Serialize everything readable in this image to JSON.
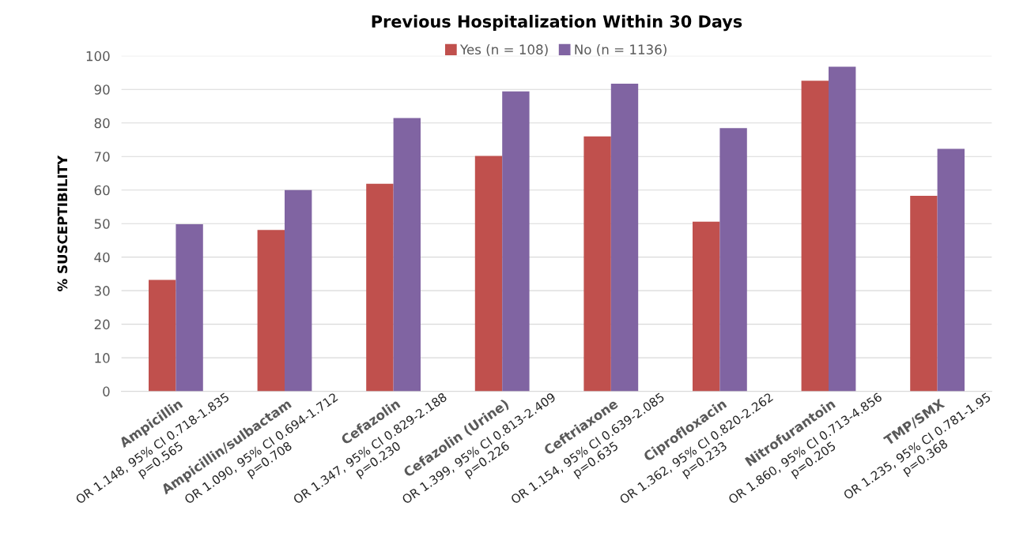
{
  "chart_data": {
    "type": "bar",
    "title": "Previous Hospitalization Within 30 Days",
    "ylabel": "% SUSCEPTIBILITY",
    "categories": [
      "Ampicillin",
      "Ampicillin/sulbactam",
      "Cefazolin",
      "Cefazolin (Urine)",
      "Ceftriaxone",
      "Ciprofloxacin",
      "Nitrofurantoin",
      "TMP/SMX"
    ],
    "series": [
      {
        "name": "Yes (n = 108)",
        "color": "#c0504d",
        "values": [
          33.2,
          48.1,
          61.9,
          70.2,
          76.0,
          50.6,
          92.6,
          58.3
        ]
      },
      {
        "name": "No (n = 1136)",
        "color": "#8064a2",
        "values": [
          49.8,
          60.0,
          81.5,
          89.4,
          91.7,
          78.5,
          96.8,
          72.3
        ]
      }
    ],
    "annotations": [
      "OR 1.148, 95% CI 0.718-1.835\np=0.565",
      "OR 1.090, 95% CI 0.694-1.712\np=0.708",
      "OR 1.347, 95% CI 0.829-2.188\np=0.230",
      "OR 1.399, 95% CI 0.813-2.409\np=0.226",
      "OR 1.154, 95% CI 0.639-2.085\np=0.635",
      "OR 1.362, 95% CI 0.820-2.262\np=0.233",
      "OR 1.860, 95% CI 0.713-4.856\np=0.205",
      "OR 1.235, 95% CI 0.781-1.95\np=0.368"
    ],
    "ylim": [
      0,
      100
    ],
    "yticks": [
      0,
      10,
      20,
      30,
      40,
      50,
      60,
      70,
      80,
      90,
      100
    ],
    "grid": "y",
    "legend": "top"
  }
}
